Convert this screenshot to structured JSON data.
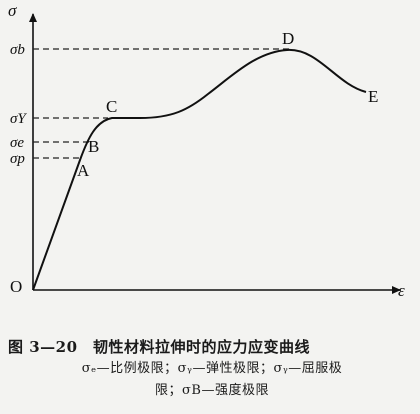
{
  "diagram": {
    "axis_x_label": "ε",
    "axis_y_label": "σ",
    "origin_label": "O",
    "y_markers": [
      {
        "id": "sigma_b",
        "label": "σb"
      },
      {
        "id": "sigma_y",
        "label": "σY"
      },
      {
        "id": "sigma_e",
        "label": "σe"
      },
      {
        "id": "sigma_p",
        "label": "σp"
      }
    ],
    "points": [
      {
        "id": "A",
        "label": "A"
      },
      {
        "id": "B",
        "label": "B"
      },
      {
        "id": "C",
        "label": "C"
      },
      {
        "id": "D",
        "label": "D"
      },
      {
        "id": "E",
        "label": "E"
      }
    ]
  },
  "caption": {
    "line1": "图 3—20　韧性材料拉伸时的应力应变曲线",
    "line2": "σₑ—比例极限；σᵧ—弹性极限；σᵧ—屈服极",
    "line3": "限；σB—强度极限"
  }
}
